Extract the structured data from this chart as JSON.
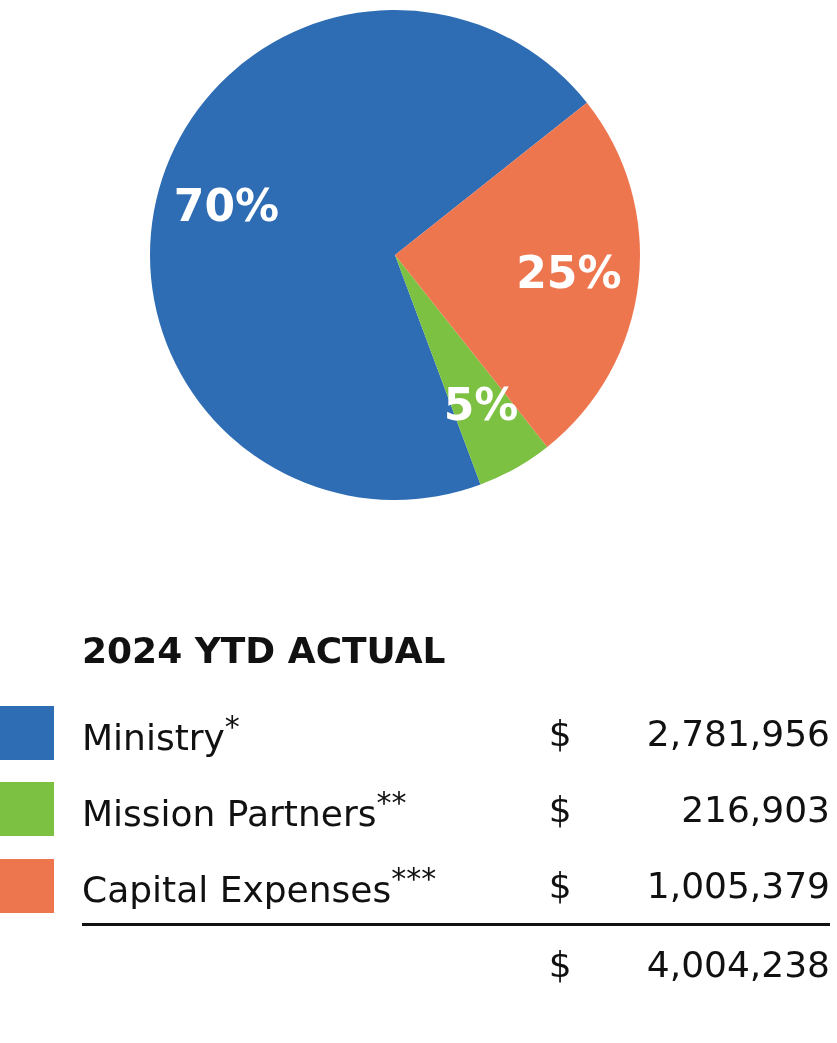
{
  "chart_data": {
    "type": "pie",
    "categories": [
      "Ministry$^{*}$",
      "Mission Partners$^{**}$",
      "Capital Expenses$^{***}$"
    ],
    "values": [
      70,
      5,
      25
    ],
    "colors": [
      "#2e6db4",
      "#7cc142",
      "#ee764e"
    ],
    "value_labels": [
      "70%",
      "5%",
      "25%"
    ],
    "data_labels": false,
    "legend_title": "2024 YTD ACTUAL",
    "legend": "bottom",
    "annotations": [
      "$ 2,781,956",
      "$ 216,903",
      "$ 1,005,379",
      "$ 4,004,238"
    ]
  }
}
